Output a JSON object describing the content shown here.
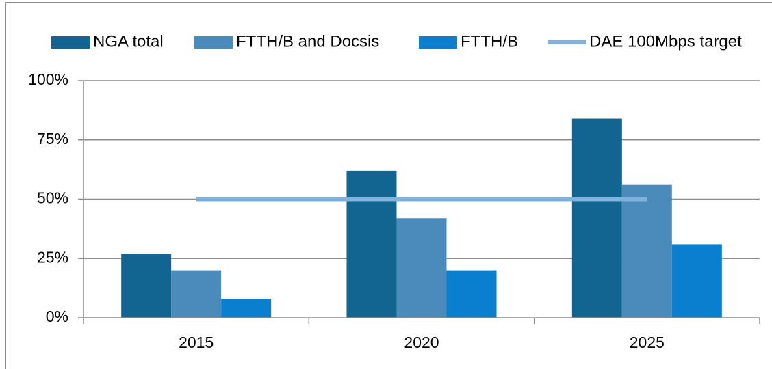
{
  "chart_data": {
    "type": "bar",
    "categories": [
      "2015",
      "2020",
      "2025"
    ],
    "series": [
      {
        "name": "NGA total",
        "color": "#136591",
        "values": [
          27,
          62,
          84
        ]
      },
      {
        "name": "FTTH/B and Docsis",
        "color": "#4a8bbb",
        "values": [
          20,
          42,
          56
        ]
      },
      {
        "name": "FTTH/B",
        "color": "#0a7fd0",
        "values": [
          8,
          20,
          31
        ]
      },
      {
        "name": "DAE 100Mbps target",
        "color": "#7fb2dd",
        "type": "line",
        "values": [
          50,
          50,
          50
        ]
      }
    ],
    "ylim": [
      0,
      100
    ],
    "yticks": [
      {
        "value": 0,
        "label": "0%"
      },
      {
        "value": 25,
        "label": "25%"
      },
      {
        "value": 50,
        "label": "50%"
      },
      {
        "value": 75,
        "label": "75%"
      },
      {
        "value": 100,
        "label": "100%"
      }
    ],
    "grid": true,
    "legend": "top"
  }
}
